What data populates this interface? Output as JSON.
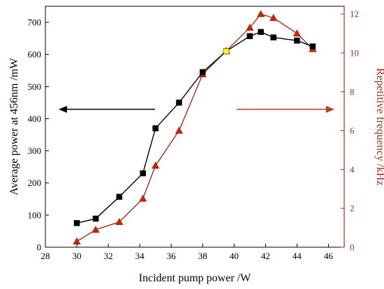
{
  "chart_data": {
    "type": "line",
    "xlabel": "Incident pump power /W",
    "ylabel_left": "Average power at 456nm /mW",
    "ylabel_right": "Repetitive frequency /kHz",
    "xlim": [
      28,
      47
    ],
    "ylim_left": [
      0,
      750
    ],
    "ylim_right": [
      0,
      12.4
    ],
    "x_ticks": [
      28,
      30,
      32,
      34,
      36,
      38,
      40,
      42,
      44,
      46
    ],
    "y_left_ticks": [
      0,
      100,
      200,
      300,
      400,
      500,
      600,
      700
    ],
    "y_right_ticks": [
      0,
      2,
      4,
      6,
      8,
      10,
      12
    ],
    "grid": false,
    "series": [
      {
        "axis": "left",
        "marker": "square",
        "color": "#000000",
        "highlight": {
          "index": 7,
          "color": "#ffff00"
        },
        "x": [
          30.0,
          31.2,
          32.7,
          34.2,
          35.0,
          36.5,
          38.0,
          39.5,
          41.0,
          41.7,
          42.5,
          44.0,
          45.0
        ],
        "y": [
          75,
          89,
          157,
          230,
          370,
          450,
          545,
          610,
          657,
          670,
          653,
          643,
          625
        ]
      },
      {
        "axis": "right",
        "marker": "triangle",
        "color": "#a0301e",
        "fill": "#cc2200",
        "highlight": {
          "index": 7,
          "color": "#33dd33"
        },
        "x": [
          30.0,
          31.2,
          32.7,
          34.2,
          35.0,
          36.5,
          38.0,
          39.5,
          41.0,
          41.7,
          42.5,
          44.0,
          45.0
        ],
        "y": [
          0.3,
          0.9,
          1.3,
          2.5,
          4.2,
          6.0,
          8.9,
          10.1,
          11.3,
          12.0,
          11.8,
          11.0,
          10.2
        ]
      }
    ],
    "annotations": [
      {
        "type": "arrow",
        "direction": "left",
        "meaning": "left axis series",
        "color": "#000000"
      },
      {
        "type": "arrow",
        "direction": "right",
        "meaning": "right axis series",
        "color": "#c0392b"
      }
    ]
  }
}
